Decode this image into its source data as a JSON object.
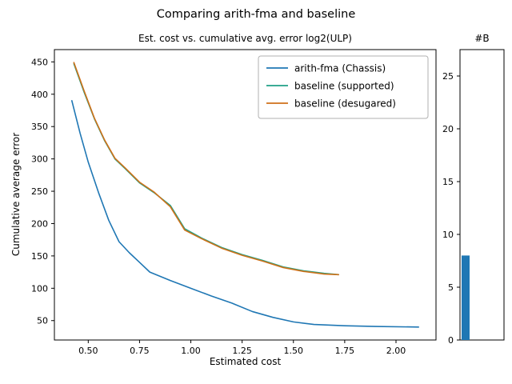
{
  "figure": {
    "suptitle": "Comparing arith-fma and baseline",
    "background": "#ffffff"
  },
  "chart_data": [
    {
      "type": "line",
      "title": "Est. cost vs. cumulative avg. error log2(ULP)",
      "xlabel": "Estimated cost",
      "ylabel": "Cumulative average error",
      "xlim": [
        0.335,
        2.195
      ],
      "ylim": [
        20,
        469
      ],
      "xticks": [
        0.5,
        0.75,
        1.0,
        1.25,
        1.5,
        1.75,
        2.0
      ],
      "xtick_labels": [
        "0.50",
        "0.75",
        "1.00",
        "1.25",
        "1.50",
        "1.75",
        "2.00"
      ],
      "yticks": [
        50,
        100,
        150,
        200,
        250,
        300,
        350,
        400,
        450
      ],
      "ytick_labels": [
        "50",
        "100",
        "150",
        "200",
        "250",
        "300",
        "350",
        "400",
        "450"
      ],
      "grid": false,
      "legend_position": "upper right",
      "series": [
        {
          "name": "arith-fma (Chassis)",
          "color": "#1f77b4",
          "x": [
            0.42,
            0.46,
            0.5,
            0.55,
            0.6,
            0.65,
            0.7,
            0.75,
            0.8,
            0.9,
            1.0,
            1.1,
            1.2,
            1.3,
            1.4,
            1.5,
            1.6,
            1.75,
            1.9,
            2.11
          ],
          "y": [
            390,
            340,
            295,
            248,
            205,
            172,
            155,
            140,
            125,
            112,
            100,
            88,
            77,
            64,
            55,
            48,
            44,
            42,
            41,
            40
          ]
        },
        {
          "name": "baseline (supported)",
          "color": "#1fa187",
          "x": [
            0.43,
            0.48,
            0.53,
            0.58,
            0.63,
            0.68,
            0.75,
            0.82,
            0.9,
            0.97,
            1.05,
            1.15,
            1.25,
            1.35,
            1.45,
            1.55,
            1.65,
            1.72
          ],
          "y": [
            447,
            403,
            362,
            328,
            300,
            285,
            263,
            248,
            228,
            192,
            178,
            163,
            152,
            143,
            133,
            127,
            123,
            121
          ]
        },
        {
          "name": "baseline (desugared)",
          "color": "#cf7119",
          "x": [
            0.43,
            0.48,
            0.53,
            0.58,
            0.63,
            0.68,
            0.75,
            0.82,
            0.9,
            0.97,
            1.05,
            1.15,
            1.25,
            1.35,
            1.45,
            1.55,
            1.65,
            1.72
          ],
          "y": [
            449,
            405,
            363,
            329,
            301,
            286,
            264,
            249,
            226,
            190,
            177,
            162,
            151,
            142,
            132,
            126,
            122,
            121
          ]
        }
      ]
    },
    {
      "type": "bar",
      "title": "#B",
      "categories": [
        ""
      ],
      "values": [
        8
      ],
      "bar_color": "#1f77b4",
      "ylim": [
        0,
        27.5
      ],
      "yticks": [
        0,
        5,
        10,
        15,
        20,
        25
      ],
      "ytick_labels": [
        "0",
        "5",
        "10",
        "15",
        "20",
        "25"
      ]
    }
  ]
}
